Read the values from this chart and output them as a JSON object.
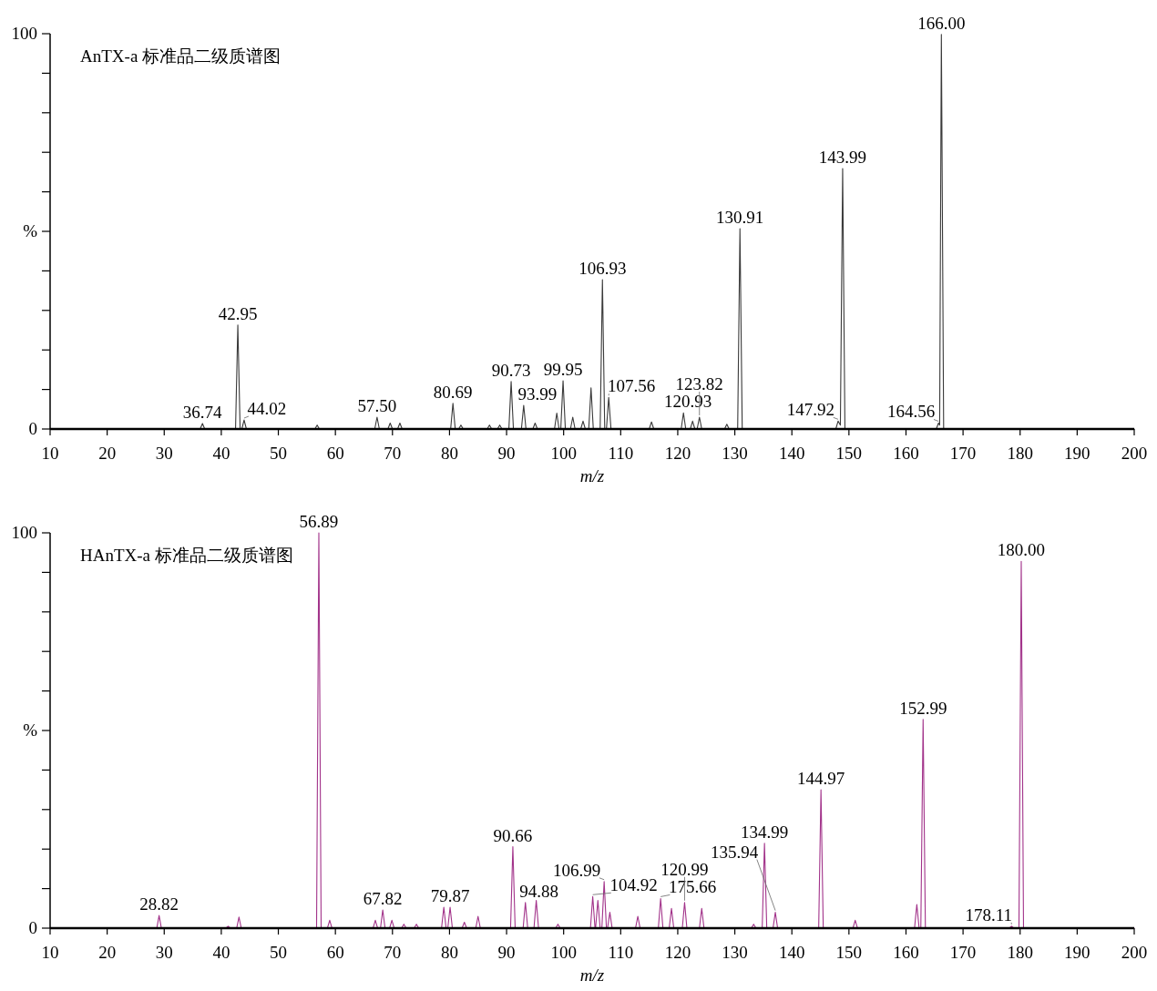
{
  "chart_data": [
    {
      "type": "line",
      "title": "AnTX-a 标准品二级质谱图",
      "xlabel": "m/z",
      "xlim": [
        10,
        200
      ],
      "ylim": [
        0,
        100
      ],
      "xticks": [
        10,
        20,
        30,
        40,
        50,
        60,
        70,
        80,
        90,
        100,
        110,
        120,
        130,
        140,
        150,
        160,
        170,
        180,
        190,
        200
      ],
      "yticks": [
        {
          "value": 0,
          "label": "0"
        },
        {
          "value": 10,
          "label": null
        },
        {
          "value": 20,
          "label": null
        },
        {
          "value": 30,
          "label": null
        },
        {
          "value": 40,
          "label": null
        },
        {
          "value": 50,
          "label": "%"
        },
        {
          "value": 60,
          "label": null
        },
        {
          "value": 70,
          "label": null
        },
        {
          "value": 80,
          "label": null
        },
        {
          "value": 90,
          "label": null
        },
        {
          "value": 100,
          "label": "100"
        }
      ],
      "series": [
        {
          "color": "#3a3a3a",
          "x": [
            10,
            36.3,
            36.7,
            37.1,
            42.5,
            42.9,
            43.3,
            43.6,
            44.0,
            44.4,
            56.4,
            56.8,
            57.2,
            66.9,
            67.3,
            67.7,
            69.2,
            69.6,
            70.0,
            70.9,
            71.3,
            71.7,
            80.2,
            80.6,
            81.0,
            81.6,
            82.0,
            82.4,
            86.6,
            87.0,
            87.4,
            88.4,
            88.8,
            89.2,
            90.4,
            90.8,
            91.2,
            92.6,
            93.0,
            93.4,
            94.6,
            95.0,
            95.4,
            98.4,
            98.8,
            99.2,
            99.5,
            99.9,
            100.3,
            101.2,
            101.6,
            102.0,
            103.0,
            103.4,
            103.8,
            104.4,
            104.8,
            105.2,
            106.4,
            106.8,
            107.2,
            107.5,
            107.9,
            108.3,
            115.0,
            115.4,
            115.8,
            120.6,
            121.0,
            121.4,
            122.2,
            122.6,
            123.0,
            123.4,
            123.8,
            124.2,
            128.2,
            128.6,
            129.0,
            130.5,
            130.9,
            131.3,
            147.7,
            148.1,
            148.5,
            148.9,
            149.3,
            165.3,
            165.7,
            165.9,
            166.2,
            166.6,
            200
          ],
          "values": [
            0,
            0,
            1.4,
            0,
            0,
            26.3,
            0,
            0,
            2.3,
            0,
            0,
            1,
            0,
            0,
            3,
            0,
            0,
            1.5,
            0,
            0,
            1.5,
            0,
            0,
            6.5,
            0,
            0,
            1,
            0,
            0,
            1,
            0,
            0,
            1,
            0,
            0,
            12,
            0,
            0,
            6,
            0,
            0,
            1.5,
            0,
            0,
            4,
            0,
            0,
            12.2,
            0,
            0,
            3,
            0,
            0,
            2,
            0,
            0,
            10.4,
            0,
            0,
            37.8,
            0,
            0,
            8,
            0,
            0,
            1.8,
            0,
            0,
            4.1,
            0,
            0,
            2,
            0,
            0,
            3,
            0,
            0,
            1.2,
            0,
            0,
            50.7,
            0,
            0,
            2,
            1,
            65.9,
            0,
            0,
            1.5,
            1,
            99.8,
            0,
            0
          ]
        }
      ],
      "annotations": [
        {
          "text": "36.74",
          "x": 36.7,
          "y": 1.4
        },
        {
          "text": "42.95",
          "x": 42.9,
          "y": 26.3
        },
        {
          "text": "44.02",
          "x": 44.0,
          "y": 2.3
        },
        {
          "text": "57.50",
          "x": 67.3,
          "y": 3
        },
        {
          "text": "80.69",
          "x": 80.6,
          "y": 6.5
        },
        {
          "text": "90.73",
          "x": 90.8,
          "y": 12
        },
        {
          "text": "93.99",
          "x": 93.0,
          "y": 6
        },
        {
          "text": "99.95",
          "x": 99.9,
          "y": 12.2
        },
        {
          "text": "106.93",
          "x": 106.8,
          "y": 37.8
        },
        {
          "text": "107.56",
          "x": 107.9,
          "y": 8
        },
        {
          "text": "120.93",
          "x": 121.0,
          "y": 4.1
        },
        {
          "text": "123.82",
          "x": 123.8,
          "y": 3
        },
        {
          "text": "130.91",
          "x": 130.9,
          "y": 50.7
        },
        {
          "text": "143.99",
          "x": 148.9,
          "y": 65.9
        },
        {
          "text": "147.92",
          "x": 148.1,
          "y": 2
        },
        {
          "text": "164.56",
          "x": 165.7,
          "y": 1.5
        },
        {
          "text": "166.00",
          "x": 166.2,
          "y": 99.8
        }
      ]
    },
    {
      "type": "line",
      "title": "HAnTX-a 标准品二级质谱图",
      "xlabel": "m/z",
      "xlim": [
        10,
        200
      ],
      "ylim": [
        0,
        100
      ],
      "xticks": [
        10,
        20,
        30,
        40,
        50,
        60,
        70,
        80,
        90,
        100,
        110,
        120,
        130,
        140,
        150,
        160,
        170,
        180,
        190,
        200
      ],
      "yticks": [
        {
          "value": 0,
          "label": "0"
        },
        {
          "value": 10,
          "label": null
        },
        {
          "value": 20,
          "label": null
        },
        {
          "value": 30,
          "label": null
        },
        {
          "value": 40,
          "label": null
        },
        {
          "value": 50,
          "label": "%"
        },
        {
          "value": 60,
          "label": null
        },
        {
          "value": 70,
          "label": null
        },
        {
          "value": 80,
          "label": null
        },
        {
          "value": 90,
          "label": null
        },
        {
          "value": 100,
          "label": "100"
        }
      ],
      "series": [
        {
          "color": "#a2338a",
          "x": [
            10,
            28.7,
            29.1,
            29.5,
            40.8,
            41.2,
            41.6,
            42.7,
            43.1,
            43.5,
            56.7,
            57.1,
            57.5,
            58.6,
            59.0,
            59.4,
            66.6,
            67.0,
            67.4,
            67.9,
            68.3,
            68.7,
            69.5,
            69.9,
            70.3,
            71.6,
            72.0,
            72.4,
            73.8,
            74.2,
            74.6,
            78.6,
            79.0,
            79.4,
            79.7,
            80.1,
            80.5,
            82.2,
            82.6,
            83.0,
            84.6,
            85.0,
            85.4,
            90.7,
            91.1,
            91.5,
            92.9,
            93.3,
            93.7,
            94.8,
            95.2,
            95.6,
            98.6,
            99.0,
            99.4,
            104.7,
            105.1,
            105.5,
            105.6,
            106.0,
            106.4,
            106.7,
            107.1,
            107.5,
            107.7,
            108.1,
            108.5,
            112.6,
            113.0,
            113.4,
            116.6,
            117.0,
            117.4,
            118.5,
            118.9,
            119.3,
            120.8,
            121.2,
            121.6,
            123.8,
            124.2,
            124.6,
            132.9,
            133.3,
            133.7,
            134.8,
            135.2,
            135.6,
            136.7,
            137.1,
            137.5,
            144.7,
            145.1,
            145.5,
            150.7,
            151.1,
            151.5,
            161.5,
            161.9,
            162.3,
            162.6,
            163.0,
            163.4,
            178.1,
            178.5,
            178.9,
            179.8,
            180.2,
            180.6,
            200
          ],
          "values": [
            0,
            0,
            3.2,
            0,
            0,
            0.5,
            0,
            0,
            2.8,
            0,
            0,
            100,
            0,
            0,
            2,
            0,
            0,
            2,
            0,
            0,
            4.6,
            0,
            0,
            2,
            0,
            0,
            1,
            0,
            0,
            1,
            0,
            0,
            5.3,
            0,
            0,
            5.3,
            0,
            0,
            1.5,
            0,
            0,
            3,
            0,
            0,
            20.6,
            0,
            0,
            6.5,
            0,
            0,
            7,
            0,
            0,
            1,
            0,
            0,
            8,
            0,
            0,
            7,
            0,
            0,
            11.8,
            0,
            0,
            4,
            0,
            0,
            3,
            0,
            0,
            7.5,
            0,
            0,
            5,
            0,
            0,
            6.5,
            0,
            0,
            5,
            0,
            0,
            1,
            0,
            0,
            21.5,
            0,
            0,
            4,
            0,
            0,
            35,
            0,
            0,
            2,
            0,
            0,
            6,
            0,
            0,
            52.8,
            0,
            0,
            0.5,
            0,
            0,
            92.8,
            0,
            0
          ]
        }
      ],
      "annotations": [
        {
          "text": "28.82",
          "x": 29.1,
          "y": 3.2
        },
        {
          "text": "56.89",
          "x": 57.1,
          "y": 100
        },
        {
          "text": "67.82",
          "x": 68.3,
          "y": 4.6
        },
        {
          "text": "79.87",
          "x": 80.1,
          "y": 5.3
        },
        {
          "text": "90.66",
          "x": 91.1,
          "y": 20.6
        },
        {
          "text": "94.88",
          "x": 93.3,
          "y": 6.5
        },
        {
          "text": "104.92",
          "x": 105.1,
          "y": 8
        },
        {
          "text": "106.99",
          "x": 107.1,
          "y": 11.8
        },
        {
          "text": "175.66",
          "x": 117.0,
          "y": 7.5
        },
        {
          "text": "120.99",
          "x": 121.2,
          "y": 6.5
        },
        {
          "text": "134.99",
          "x": 135.2,
          "y": 21.5
        },
        {
          "text": "135.94",
          "x": 137.1,
          "y": 4
        },
        {
          "text": "144.97",
          "x": 145.1,
          "y": 35
        },
        {
          "text": "152.99",
          "x": 163.0,
          "y": 52.8
        },
        {
          "text": "178.11",
          "x": 178.5,
          "y": 0.5
        },
        {
          "text": "180.00",
          "x": 180.2,
          "y": 92.8
        }
      ]
    }
  ]
}
